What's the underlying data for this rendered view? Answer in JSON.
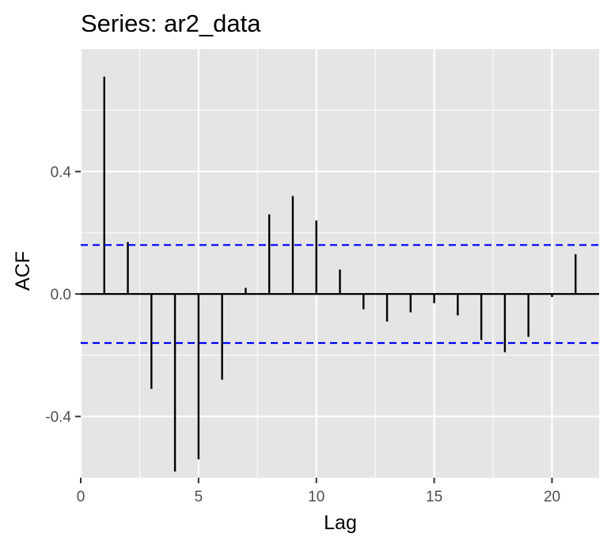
{
  "chart_data": {
    "type": "bar",
    "title": "Series: ar2_data",
    "xlabel": "Lag",
    "ylabel": "ACF",
    "xlim": [
      0,
      22
    ],
    "ylim": [
      -0.6,
      0.8
    ],
    "x_ticks": [
      0,
      5,
      10,
      15,
      20
    ],
    "x_tick_labels": [
      "0",
      "5",
      "10",
      "15",
      "20"
    ],
    "y_ticks": [
      -0.4,
      0.0,
      0.4
    ],
    "y_tick_labels": [
      "-0.4",
      "0.0",
      "0.4"
    ],
    "confidence_bound": 0.16,
    "grid": true,
    "legend": "none",
    "lags": [
      1,
      2,
      3,
      4,
      5,
      6,
      7,
      8,
      9,
      10,
      11,
      12,
      13,
      14,
      15,
      16,
      17,
      18,
      19,
      20,
      21
    ],
    "values": [
      0.71,
      0.17,
      -0.31,
      -0.58,
      -0.54,
      -0.28,
      0.02,
      0.26,
      0.32,
      0.24,
      0.08,
      -0.05,
      -0.09,
      -0.06,
      -0.03,
      -0.07,
      -0.15,
      -0.19,
      -0.14,
      -0.01,
      0.13
    ],
    "colors": {
      "panel": "#e5e5e5",
      "grid": "#ffffff",
      "bar": "#000000",
      "bound": "#0000ff",
      "tick_text": "#4d4d4d"
    }
  }
}
